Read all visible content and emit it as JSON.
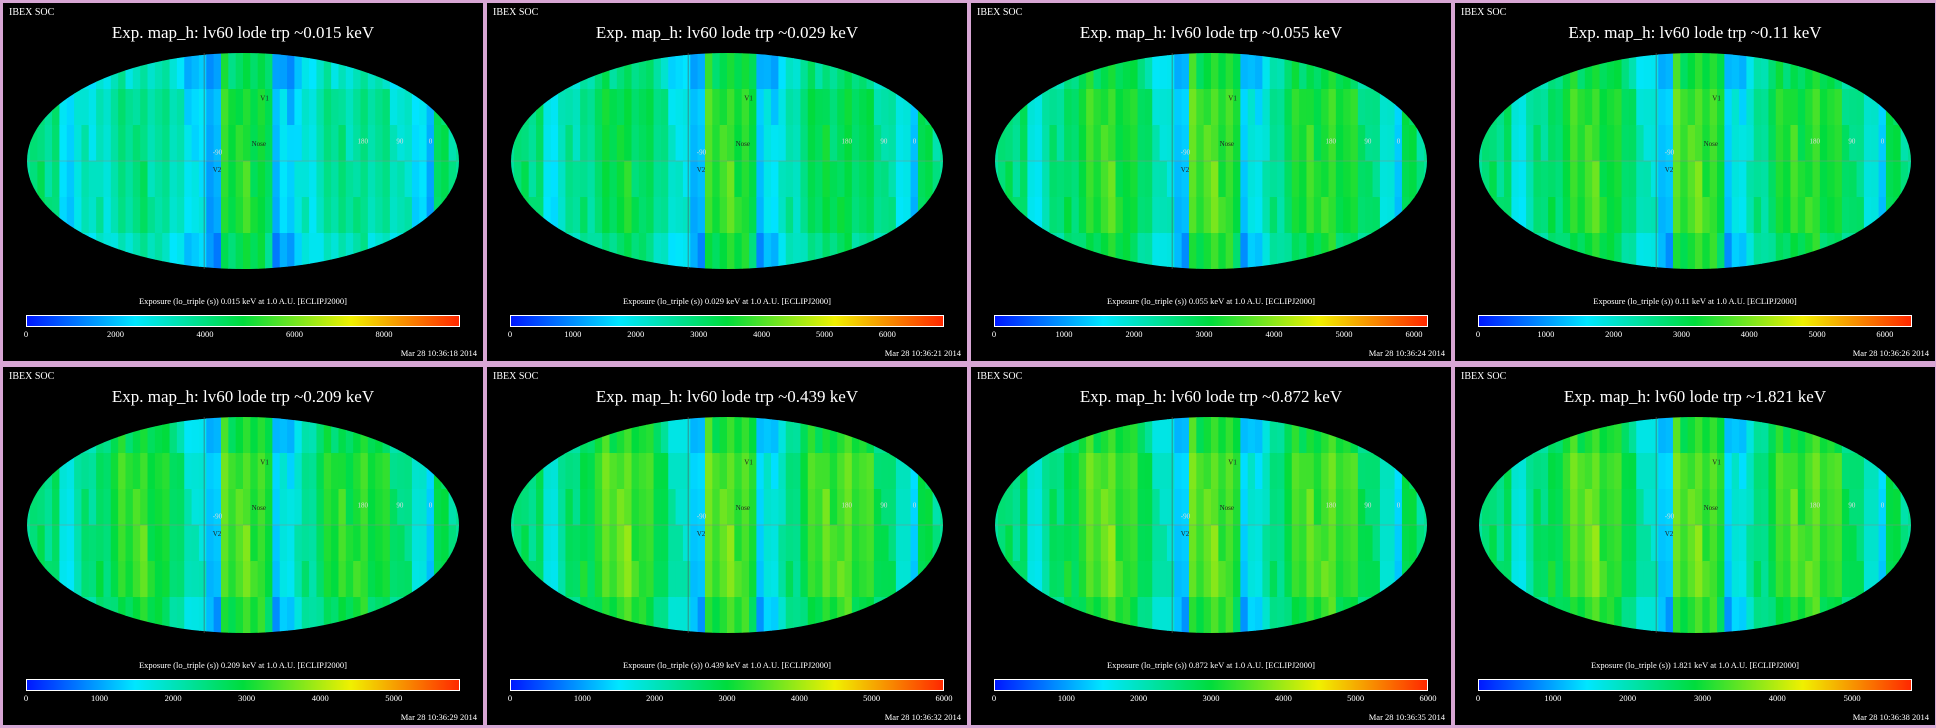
{
  "corner_label": "IBEX SOC",
  "panels": [
    {
      "title": "Exp.   map_h: lv60 lode trp ~0.015 keV",
      "label": "Exposure (lo_triple (s))  0.015 keV at 1.0 A.U. [ECLIPJ2000]",
      "ticks": [
        "0",
        "2000",
        "4000",
        "6000",
        "8000"
      ],
      "max": 9700,
      "timestamp": "Mar 28 10:36:18 2014",
      "level": 0.28
    },
    {
      "title": "Exp.   map_h: lv60 lode trp ~0.029 keV",
      "label": "Exposure (lo_triple (s))  0.029 keV at 1.0 A.U. [ECLIPJ2000]",
      "ticks": [
        "0",
        "1000",
        "2000",
        "3000",
        "4000",
        "5000",
        "6000"
      ],
      "max": 6900,
      "timestamp": "Mar 28 10:36:21 2014",
      "level": 0.38
    },
    {
      "title": "Exp.   map_h: lv60 lode trp ~0.055 keV",
      "label": "Exposure (lo_triple (s))  0.055 keV at 1.0 A.U. [ECLIPJ2000]",
      "ticks": [
        "0",
        "1000",
        "2000",
        "3000",
        "4000",
        "5000",
        "6000"
      ],
      "max": 6200,
      "timestamp": "Mar 28 10:36:24 2014",
      "level": 0.45
    },
    {
      "title": "Exp.   map_h: lv60 lode trp ~0.11 keV",
      "label": "Exposure (lo_triple (s))  0.11 keV at 1.0 A.U. [ECLIPJ2000]",
      "ticks": [
        "0",
        "1000",
        "2000",
        "3000",
        "4000",
        "5000",
        "6000"
      ],
      "max": 6400,
      "timestamp": "Mar 28 10:36:26 2014",
      "level": 0.45
    },
    {
      "title": "Exp.   map_h: lv60 lode trp ~0.209 keV",
      "label": "Exposure (lo_triple (s))  0.209 keV at 1.0 A.U. [ECLIPJ2000]",
      "ticks": [
        "0",
        "1000",
        "2000",
        "3000",
        "4000",
        "5000"
      ],
      "max": 5900,
      "timestamp": "Mar 28 10:36:29 2014",
      "level": 0.45
    },
    {
      "title": "Exp.   map_h: lv60 lode trp ~0.439 keV",
      "label": "Exposure (lo_triple (s))  0.439 keV at 1.0 A.U. [ECLIPJ2000]",
      "ticks": [
        "0",
        "1000",
        "2000",
        "3000",
        "4000",
        "5000",
        "6000"
      ],
      "max": 6000,
      "timestamp": "Mar 28 10:36:32 2014",
      "level": 0.5
    },
    {
      "title": "Exp.   map_h: lv60 lode trp ~0.872 keV",
      "label": "Exposure (lo_triple (s))  0.872 keV at 1.0 A.U. [ECLIPJ2000]",
      "ticks": [
        "0",
        "1000",
        "2000",
        "3000",
        "4000",
        "5000",
        "6000"
      ],
      "max": 6000,
      "timestamp": "Mar 28 10:36:35 2014",
      "level": 0.5
    },
    {
      "title": "Exp.   map_h: lv60 lode trp ~1.821 keV",
      "label": "Exposure (lo_triple (s))  1.821 keV at 1.0 A.U. [ECLIPJ2000]",
      "ticks": [
        "0",
        "1000",
        "2000",
        "3000",
        "4000",
        "5000"
      ],
      "max": 5800,
      "timestamp": "Mar 28 10:36:38 2014",
      "level": 0.5
    }
  ],
  "map_markers": [
    "V1",
    "V2",
    "Nose",
    "90",
    "-90",
    "180",
    "0"
  ],
  "colors": {
    "bg": "#000000",
    "frame": "#d7a6d4",
    "text": "#ffffff",
    "marker": "#ff3030"
  }
}
